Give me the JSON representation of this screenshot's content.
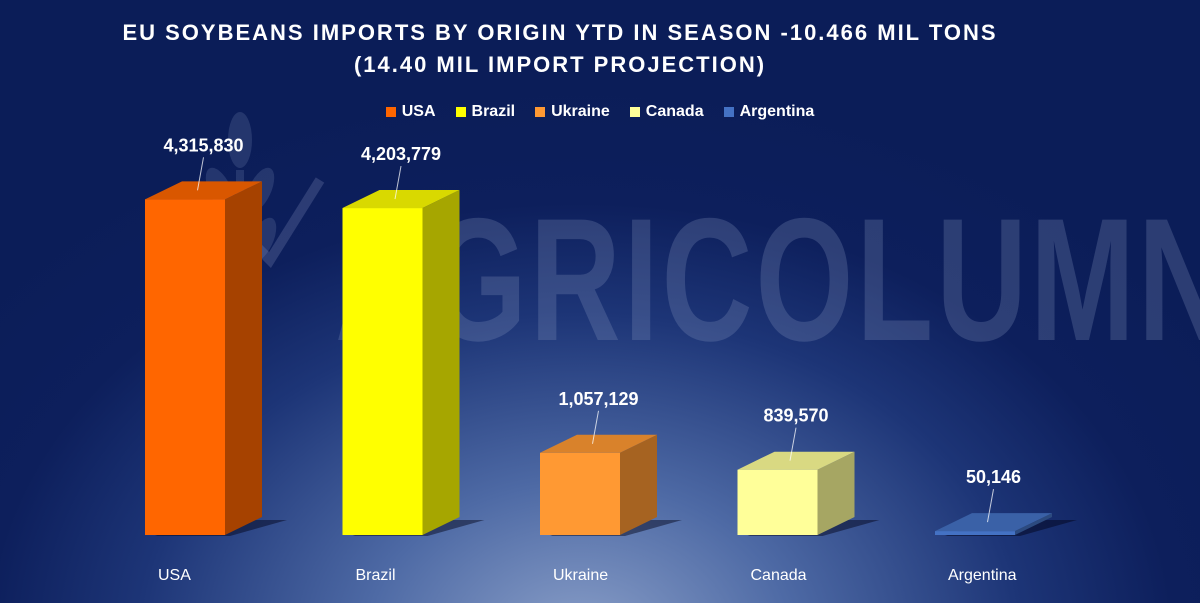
{
  "watermark": "AGRICOLUMN",
  "chart_data": {
    "type": "bar",
    "title": "EU SOYBEANS IMPORTS BY ORIGIN YTD IN SEASON -10.466 MIL TONS",
    "subtitle": "(14.40 MIL IMPORT PROJECTION)",
    "categories": [
      "USA",
      "Brazil",
      "Ukraine",
      "Canada",
      "Argentina"
    ],
    "values": [
      4315830,
      4203779,
      1057129,
      839570,
      50146
    ],
    "value_labels": [
      "4,315,830",
      "4,203,779",
      "1,057,129",
      "839,570",
      "50,146"
    ],
    "colors": [
      "#ff6600",
      "#ffff00",
      "#ff9933",
      "#ffff99",
      "#4472c4"
    ],
    "legend": {
      "placement": "top-center",
      "entries": [
        "USA",
        "Brazil",
        "Ukraine",
        "Canada",
        "Argentina"
      ]
    },
    "ylim": [
      0,
      4500000
    ],
    "grid": false,
    "style": "3d-column"
  }
}
